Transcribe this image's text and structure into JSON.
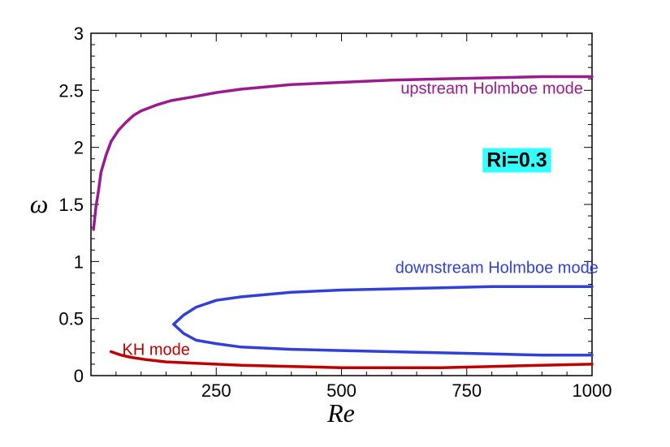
{
  "chart_data": {
    "type": "line",
    "title": "",
    "xlabel": "Re",
    "ylabel": "ω",
    "xlim": [
      0,
      1000
    ],
    "ylim": [
      0,
      3
    ],
    "xticks": [
      250,
      500,
      750,
      1000
    ],
    "xtick_labels": [
      "250",
      "500",
      "750",
      "1000"
    ],
    "yticks": [
      0,
      0.5,
      1,
      1.5,
      2,
      2.5,
      3
    ],
    "ytick_labels": [
      "0",
      "0.5",
      "1",
      "1.5",
      "2",
      "2.5",
      "3"
    ],
    "grid": false,
    "series": [
      {
        "name": "upstream Holmboe mode",
        "color": "#9b1a8f",
        "points": [
          [
            5,
            1.28
          ],
          [
            10,
            1.48
          ],
          [
            15,
            1.62
          ],
          [
            20,
            1.78
          ],
          [
            30,
            1.93
          ],
          [
            40,
            2.05
          ],
          [
            55,
            2.15
          ],
          [
            70,
            2.22
          ],
          [
            85,
            2.28
          ],
          [
            100,
            2.32
          ],
          [
            130,
            2.37
          ],
          [
            160,
            2.41
          ],
          [
            200,
            2.44
          ],
          [
            250,
            2.48
          ],
          [
            300,
            2.51
          ],
          [
            400,
            2.55
          ],
          [
            500,
            2.57
          ],
          [
            600,
            2.59
          ],
          [
            700,
            2.6
          ],
          [
            800,
            2.61
          ],
          [
            900,
            2.62
          ],
          [
            1000,
            2.62
          ]
        ]
      },
      {
        "name": "downstream Holmboe mode",
        "color": "#3040d8",
        "points": [
          [
            1000,
            0.78
          ],
          [
            900,
            0.78
          ],
          [
            800,
            0.78
          ],
          [
            700,
            0.77
          ],
          [
            600,
            0.76
          ],
          [
            500,
            0.75
          ],
          [
            400,
            0.73
          ],
          [
            300,
            0.69
          ],
          [
            250,
            0.66
          ],
          [
            210,
            0.6
          ],
          [
            185,
            0.53
          ],
          [
            165,
            0.45
          ],
          [
            185,
            0.37
          ],
          [
            210,
            0.31
          ],
          [
            250,
            0.28
          ],
          [
            300,
            0.25
          ],
          [
            400,
            0.23
          ],
          [
            500,
            0.22
          ],
          [
            600,
            0.21
          ],
          [
            700,
            0.2
          ],
          [
            800,
            0.19
          ],
          [
            900,
            0.18
          ],
          [
            1000,
            0.18
          ]
        ]
      },
      {
        "name": "KH mode",
        "color": "#c00000",
        "points": [
          [
            40,
            0.21
          ],
          [
            60,
            0.18
          ],
          [
            80,
            0.16
          ],
          [
            110,
            0.14
          ],
          [
            150,
            0.12
          ],
          [
            200,
            0.11
          ],
          [
            250,
            0.1
          ],
          [
            300,
            0.09
          ],
          [
            400,
            0.08
          ],
          [
            500,
            0.07
          ],
          [
            600,
            0.07
          ],
          [
            700,
            0.07
          ],
          [
            800,
            0.08
          ],
          [
            900,
            0.09
          ],
          [
            1000,
            0.1
          ]
        ]
      }
    ],
    "annotations": [
      {
        "text": "upstream Holmboe mode",
        "x": 800,
        "y": 2.47,
        "color": "#9b1a8f"
      },
      {
        "text": "downstream Holmboe mode",
        "x": 810,
        "y": 0.9,
        "color": "#3040d8"
      },
      {
        "text": "KH mode",
        "x": 130,
        "y": 0.18,
        "color": "#c00000"
      }
    ],
    "callout": {
      "text": "Ri=0.3",
      "background": "#33ffff",
      "x": 850,
      "y": 1.83
    }
  }
}
